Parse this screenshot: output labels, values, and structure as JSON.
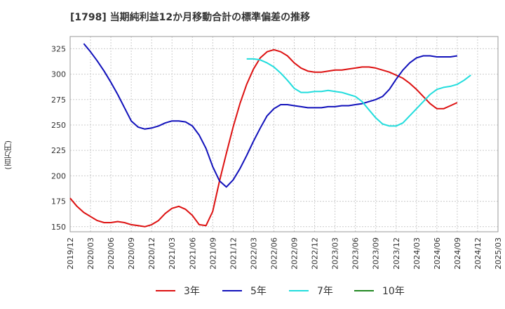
{
  "chart_data": {
    "type": "line",
    "title": "[1798]  当期純利益12か月移動合計の標準偏差の推移",
    "ylabel": "(百万円)",
    "xlabel": "",
    "ylim": [
      145,
      337
    ],
    "yticks": [
      150,
      175,
      200,
      225,
      250,
      275,
      300,
      325
    ],
    "xticks": [
      "2019/12",
      "2020/03",
      "2020/06",
      "2020/09",
      "2020/12",
      "2021/03",
      "2021/06",
      "2021/09",
      "2021/12",
      "2022/03",
      "2022/06",
      "2022/09",
      "2022/12",
      "2023/03",
      "2023/06",
      "2023/09",
      "2023/12",
      "2024/03",
      "2024/06",
      "2024/09",
      "2024/12",
      "2025/03"
    ],
    "grid": true,
    "legend_position": "bottom",
    "series": [
      {
        "name": "3年",
        "color": "#dd1111",
        "start": "2019/12",
        "values": [
          178,
          170,
          164,
          160,
          156,
          154,
          154,
          155,
          154,
          152,
          151,
          150,
          152,
          156,
          163,
          168,
          170,
          167,
          161,
          152,
          151,
          165,
          195,
          222,
          248,
          271,
          290,
          305,
          316,
          322,
          324,
          322,
          318,
          311,
          306,
          303,
          302,
          302,
          303,
          304,
          304,
          305,
          306,
          307,
          307,
          306,
          304,
          302,
          299,
          296,
          291,
          285,
          278,
          271,
          266,
          266,
          269,
          272
        ]
      },
      {
        "name": "5年",
        "color": "#1111bb",
        "start": "2020/02",
        "values": [
          330,
          322,
          313,
          303,
          292,
          280,
          267,
          254,
          248,
          246,
          247,
          249,
          252,
          254,
          254,
          253,
          249,
          240,
          227,
          209,
          195,
          189,
          196,
          207,
          220,
          234,
          247,
          259,
          266,
          270,
          270,
          269,
          268,
          267,
          267,
          267,
          268,
          268,
          269,
          269,
          270,
          271,
          273,
          275,
          278,
          285,
          295,
          304,
          311,
          316,
          318,
          318,
          317,
          317,
          317,
          318
        ]
      },
      {
        "name": "7年",
        "color": "#22dddd",
        "start": "2022/02",
        "values": [
          315,
          315,
          314,
          311,
          307,
          301,
          294,
          286,
          282,
          282,
          283,
          283,
          284,
          283,
          282,
          280,
          278,
          273,
          265,
          257,
          251,
          249,
          249,
          252,
          259,
          266,
          273,
          280,
          285,
          287,
          288,
          290,
          294,
          299
        ]
      },
      {
        "name": "10年",
        "color": "#228822",
        "start": "2019/12",
        "values": []
      }
    ]
  }
}
